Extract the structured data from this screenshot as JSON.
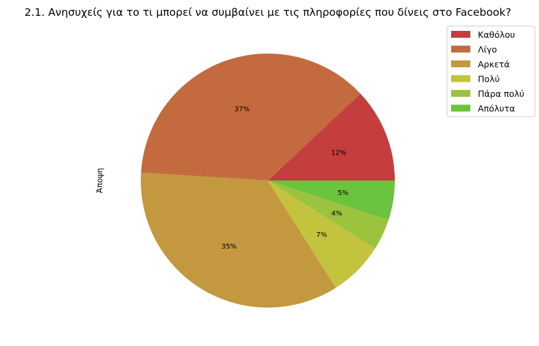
{
  "chart_data": {
    "type": "pie",
    "title": "2.1. Ανησυχείς για το τι μπορεί να συμβαίνει με τις πληροφορίες που δίνεις στο Facebook?",
    "ylabel": "Άποψη",
    "legend_position": "top-right",
    "slices": [
      {
        "label": "Καθόλου",
        "value": 12,
        "pct_label": "12%",
        "color": "#c43e3e"
      },
      {
        "label": "Λίγο",
        "value": 37,
        "pct_label": "37%",
        "color": "#c36b3e"
      },
      {
        "label": "Αρκετά",
        "value": 35,
        "pct_label": "35%",
        "color": "#c3983e"
      },
      {
        "label": "Πολύ",
        "value": 7,
        "pct_label": "7%",
        "color": "#c3c33e"
      },
      {
        "label": "Πάρα πολύ",
        "value": 4,
        "pct_label": "4%",
        "color": "#9bc33e"
      },
      {
        "label": "Απόλυτα",
        "value": 5,
        "pct_label": "5%",
        "color": "#6bc33e"
      }
    ]
  }
}
